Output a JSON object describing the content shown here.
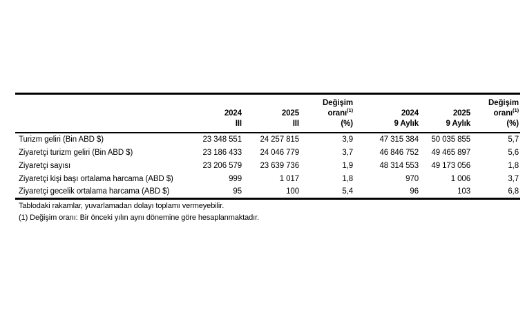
{
  "chart_data": {
    "type": "table",
    "columns": [
      "",
      "2024 III",
      "2025 III",
      "Değişim oranı(1) (%)",
      "2024 9 Aylık",
      "2025 9 Aylık",
      "Değişim oranı(1) (%)"
    ],
    "rows": [
      [
        "Turizm geliri (Bin ABD $)",
        "23 348 551",
        "24 257 815",
        "3,9",
        "47 315 384",
        "50 035 855",
        "5,7"
      ],
      [
        "Ziyaretçi turizm geliri (Bin ABD $)",
        "23 186 433",
        "24 046 779",
        "3,7",
        "46 846 752",
        "49 465 897",
        "5,6"
      ],
      [
        "Ziyaretçi sayısı",
        "23 206 579",
        "23 639 736",
        "1,9",
        "48 314 553",
        "49 173 056",
        "1,8"
      ],
      [
        "Ziyaretçi kişi başı ortalama harcama (ABD $)",
        "999",
        "1 017",
        "1,8",
        "970",
        "1 006",
        "3,7"
      ],
      [
        "Ziyaretçi gecelik ortalama harcama (ABD $)",
        "95",
        "100",
        "5,4",
        "96",
        "103",
        "6,8"
      ]
    ],
    "footnotes": [
      "Tablodaki rakamlar, yuvarlamadan dolayı toplamı vermeyebilir.",
      "(1) Değişim oranı: Bir önceki yılın aynı dönemine göre hesaplanmaktadır."
    ],
    "title": "",
    "layout": {
      "grid": false,
      "text_color": "#000000",
      "background": "#ffffff"
    }
  },
  "header": {
    "cols": [
      {
        "line1": "2024",
        "line2": "III"
      },
      {
        "line1": "2025",
        "line2": "III"
      },
      {
        "line1": "Değişim",
        "line2": "oranı",
        "sup": "(1)",
        "line3": "(%)"
      },
      {
        "line1": "2024",
        "line2": "9 Aylık"
      },
      {
        "line1": "2025",
        "line2": "9 Aylık"
      },
      {
        "line1": "Değişim",
        "line2": "oranı",
        "sup": "(1)",
        "line3": "(%)"
      }
    ]
  }
}
